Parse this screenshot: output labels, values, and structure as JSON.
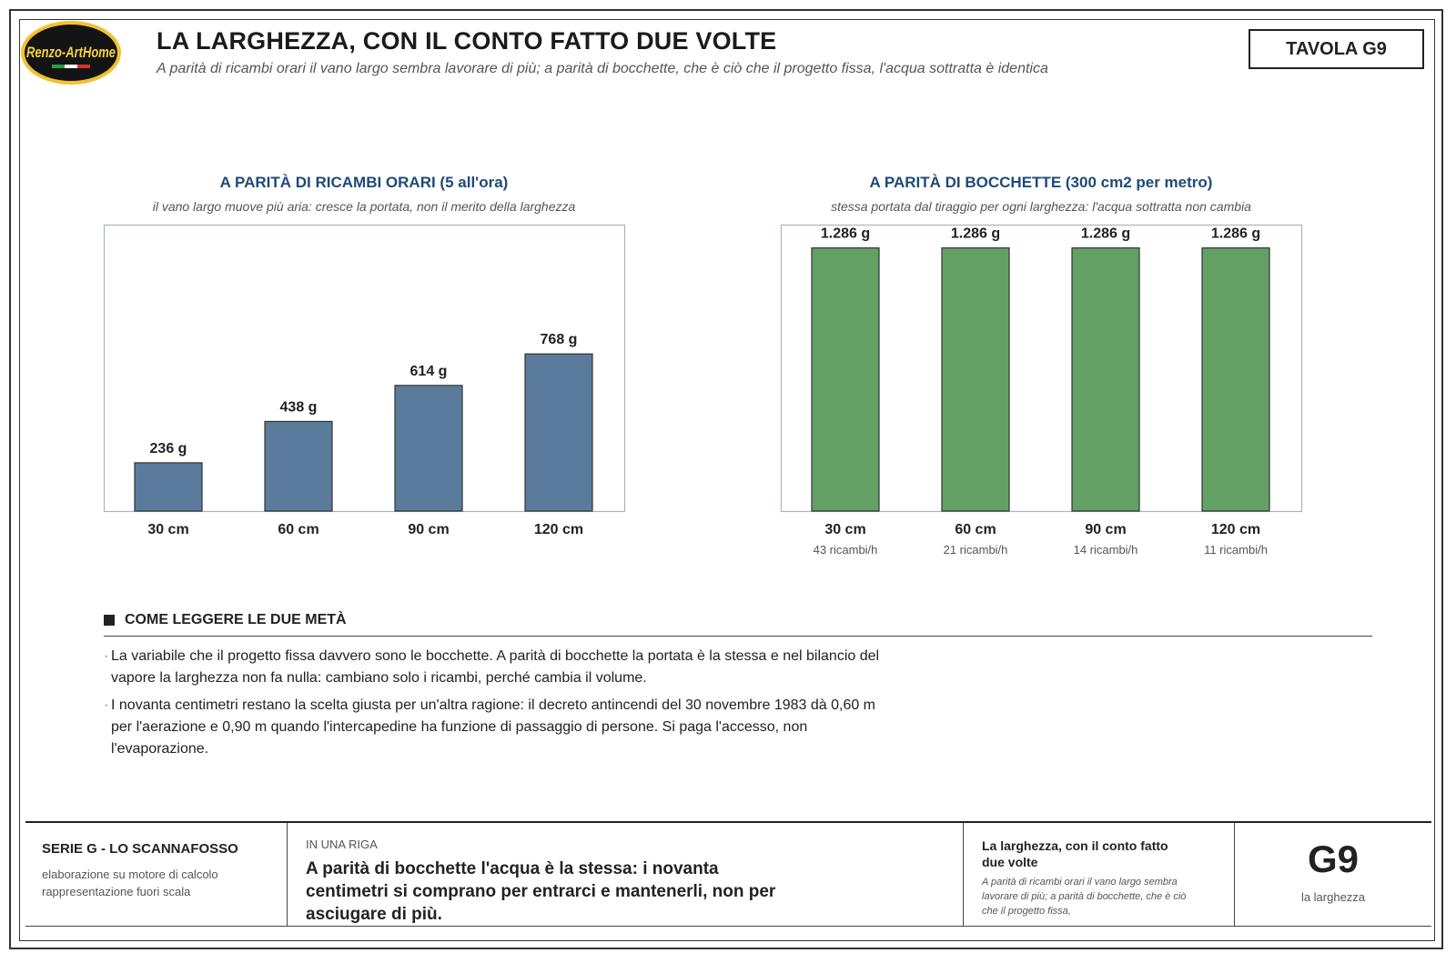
{
  "logo": {
    "text": "Renzo-ArtHome"
  },
  "header": {
    "title": "LA LARGHEZZA, CON IL CONTO FATTO DUE VOLTE",
    "subtitle": "A parità di ricambi orari il vano largo sembra lavorare di più; a parità di bocchette, che è ciò che il progetto fissa, l'acqua sottratta è identica",
    "tavola": "TAVOLA G9"
  },
  "panels": [
    {
      "title": "A PARITÀ DI RICAMBI ORARI (5 all'ora)",
      "subtitle": "il vano largo muove più aria: cresce la portata, non il merito della larghezza"
    },
    {
      "title": "A PARITÀ DI BOCCHETTE (300 cm2 per metro)",
      "subtitle": "stessa portata dal tiraggio per ogni larghezza: l'acqua sottratta non cambia"
    }
  ],
  "chart_data": [
    {
      "type": "bar",
      "title": "A PARITÀ DI RICAMBI ORARI (5 all'ora)",
      "subtitle": "il vano largo muove più aria: cresce la portata, non il merito della larghezza",
      "categories": [
        "30 cm",
        "60 cm",
        "90 cm",
        "120 cm"
      ],
      "values": [
        236,
        438,
        614,
        768
      ],
      "value_labels": [
        "236 g",
        "438 g",
        "614 g",
        "768 g"
      ],
      "unit": "g",
      "ylim": [
        0,
        1400
      ],
      "color": "#5a7b9c",
      "grid": false
    },
    {
      "type": "bar",
      "title": "A PARITÀ DI BOCCHETTE (300 cm2 per metro)",
      "subtitle": "stessa portata dal tiraggio per ogni larghezza: l'acqua sottratta non cambia",
      "categories": [
        "30 cm",
        "60 cm",
        "90 cm",
        "120 cm"
      ],
      "values": [
        1286,
        1286,
        1286,
        1286
      ],
      "value_labels": [
        "1.286 g",
        "1.286 g",
        "1.286 g",
        "1.286 g"
      ],
      "sublabels": [
        "43 ricambi/h",
        "21 ricambi/h",
        "14 ricambi/h",
        "11 ricambi/h"
      ],
      "unit": "g",
      "ylim": [
        0,
        1400
      ],
      "color": "#62a064",
      "grid": false
    }
  ],
  "notes": {
    "heading": "COME LEGGERE LE DUE METÀ",
    "bullet_char": "·",
    "items": [
      "La variabile che il progetto fissa davvero sono le bocchette. A parità di bocchette la portata è la stessa e nel bilancio del vapore la larghezza non fa nulla: cambiano solo i ricambi, perché cambia il volume.",
      "I novanta centimetri restano la scelta giusta per un'altra ragione: il decreto antincendi del 30 novembre 1983 dà 0,60 m per l'aerazione e 0,90 m quando l'intercapedine ha funzione di passaggio di persone. Si paga l'accesso, non l'evaporazione."
    ]
  },
  "footer": {
    "series": "SERIE G - LO SCANNAFOSSO",
    "note1": "elaborazione su motore di calcolo",
    "note2": "rappresentazione fuori scala",
    "oneline_label": "IN UNA RIGA",
    "oneline": "A parità di bocchette l'acqua è la stessa: i novanta centimetri si comprano per entrarci e mantenerli, non per asciugare di più.",
    "title": "La larghezza, con il conto fatto due volte",
    "title_sub": "A parità di ricambi orari il vano largo sembra lavorare di più; a parità di bocchette, che è ciò che il progetto fissa,",
    "code": "G9",
    "code_sub": "la larghezza"
  }
}
